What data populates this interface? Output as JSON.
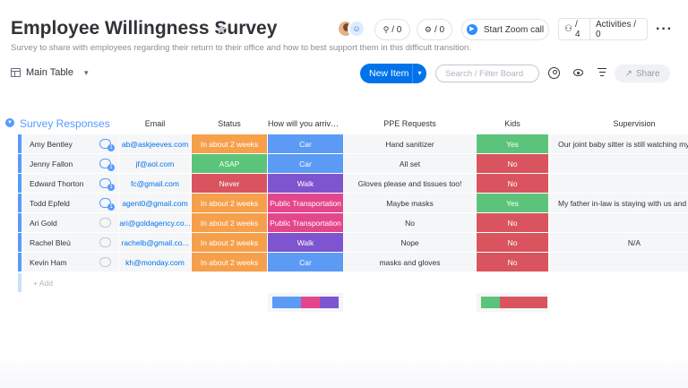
{
  "header": {
    "title": "Employee Willingness Survey",
    "subtitle": "Survey to share with employees regarding their return to their office and how to best support them in this difficult transition.",
    "mentions_count": "/ 0",
    "integrations_count": "/ 0",
    "zoom_label": "Start Zoom call",
    "members_count": "/ 4",
    "activities_label": "Activities / 0"
  },
  "toolbar": {
    "view_label": "Main Table",
    "new_item_label": "New Item",
    "search_placeholder": "Search / Filter Board",
    "share_label": "Share"
  },
  "group": {
    "title": "Survey Responses",
    "add_label": "+ Add"
  },
  "columns": {
    "email": "Email",
    "status": "Status",
    "arrive": "How will you arrive t...",
    "ppe": "PPE Requests",
    "kids": "Kids",
    "supervision": "Supervision"
  },
  "colors": {
    "orange": "#fdab3d",
    "green": "#00c875",
    "green2": "#57c27a",
    "red": "#e2445c",
    "red2": "#d74a5a",
    "blue": "#579bfc",
    "pink": "#e43c8a",
    "purple": "#7e3bd6"
  },
  "rows": [
    {
      "name": "Amy Bentley",
      "email": "ab@askjeeves.com",
      "status": "In about 2 weeks",
      "status_color": "#f6a04c",
      "arrive": "Car",
      "arrive_color": "#5c9bf5",
      "ppe": "Hand sanitizer",
      "kids": "Yes",
      "kids_color": "#5cc47a",
      "supervision": "Our joint baby sitter is still watching my",
      "updates": "1"
    },
    {
      "name": "Jenny Fallon",
      "email": "jf@aol.com",
      "status": "ASAP",
      "status_color": "#5cc47a",
      "arrive": "Car",
      "arrive_color": "#5c9bf5",
      "ppe": "All set",
      "kids": "No",
      "kids_color": "#d9545f",
      "supervision": "",
      "updates": "1"
    },
    {
      "name": "Edward Thorton",
      "email": "fc@gmail.com",
      "status": "Never",
      "status_color": "#d9545f",
      "arrive": "Walk",
      "arrive_color": "#7e54cf",
      "ppe": "Gloves please and tissues too!",
      "kids": "No",
      "kids_color": "#d9545f",
      "supervision": "",
      "updates": "1"
    },
    {
      "name": "Todd Epfeld",
      "email": "agent0@gmail.com",
      "status": "In about 2 weeks",
      "status_color": "#f6a04c",
      "arrive": "Public Transportation",
      "arrive_color": "#e4468b",
      "ppe": "Maybe masks",
      "kids": "Yes",
      "kids_color": "#5cc47a",
      "supervision": "My father in-law is staying with us and he",
      "updates": "1"
    },
    {
      "name": "Ari Gold",
      "email": "ari@goldagency.co...",
      "status": "In about 2 weeks",
      "status_color": "#f6a04c",
      "arrive": "Public Transportation",
      "arrive_color": "#e4468b",
      "ppe": "No",
      "kids": "No",
      "kids_color": "#d9545f",
      "supervision": "",
      "updates": ""
    },
    {
      "name": "Rachel Bleú",
      "email": "rachelb@gmail.co...",
      "status": "In about 2 weeks",
      "status_color": "#f6a04c",
      "arrive": "Walk",
      "arrive_color": "#7e54cf",
      "ppe": "Nope",
      "kids": "No",
      "kids_color": "#d9545f",
      "supervision": "N/A",
      "updates": ""
    },
    {
      "name": "Kevin Ham",
      "email": "kh@monday.com",
      "status": "In about 2 weeks",
      "status_color": "#f6a04c",
      "arrive": "Car",
      "arrive_color": "#5c9bf5",
      "ppe": "masks and gloves",
      "kids": "No",
      "kids_color": "#d9545f",
      "supervision": "",
      "updates": ""
    }
  ],
  "summary": {
    "arrive": [
      {
        "label": "Car",
        "share": 0.43,
        "color": "#5c9bf5"
      },
      {
        "label": "Public Transportation",
        "share": 0.29,
        "color": "#e4468b"
      },
      {
        "label": "Walk",
        "share": 0.28,
        "color": "#7e54cf"
      }
    ],
    "kids": [
      {
        "label": "Yes",
        "share": 0.29,
        "color": "#5cc47a"
      },
      {
        "label": "No",
        "share": 0.71,
        "color": "#d9545f"
      }
    ]
  }
}
